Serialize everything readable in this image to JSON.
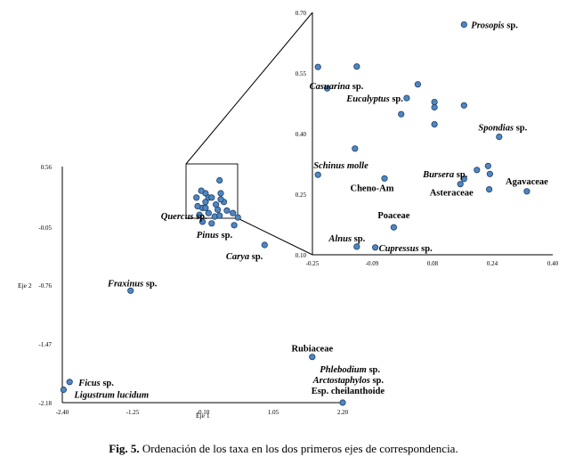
{
  "chart_data": [
    {
      "type": "scatter",
      "name": "main",
      "xlabel": "Eje 1",
      "ylabel": "Eje 2",
      "xlim": [
        -2.4,
        2.2
      ],
      "ylim": [
        -2.18,
        0.56
      ],
      "xticks": [
        "-2.40",
        "-1.25",
        "-0.10",
        "1.05",
        "2.20"
      ],
      "yticks": [
        "0.56",
        "-0.05",
        "-0.76",
        "-1.47",
        "-2.18"
      ],
      "points": [
        {
          "x": -0.05,
          "y": 0.25
        },
        {
          "x": 0.2,
          "y": 0.25
        },
        {
          "x": -0.2,
          "y": 0.2
        },
        {
          "x": -0.05,
          "y": 0.15
        },
        {
          "x": 0.0,
          "y": 0.2
        },
        {
          "x": 0.05,
          "y": 0.2
        },
        {
          "x": 0.25,
          "y": 0.15
        },
        {
          "x": 0.12,
          "y": 0.12
        },
        {
          "x": -0.1,
          "y": 0.08
        },
        {
          "x": 0.15,
          "y": 0.06
        },
        {
          "x": -0.18,
          "y": 0.1
        },
        {
          "x": 0.3,
          "y": 0.05
        },
        {
          "x": 0.0,
          "y": 0.02
        },
        {
          "x": -0.15,
          "y": 0.0
        },
        {
          "x": 0.1,
          "y": -0.02
        },
        {
          "x": -0.05,
          "y": 0.08
        },
        {
          "x": 0.4,
          "y": 0.02
        },
        {
          "x": 0.2,
          "y": 0.18
        },
        {
          "x": -0.1,
          "y": -0.08
        },
        {
          "x": 0.05,
          "y": -0.1
        },
        {
          "x": 0.18,
          "y": 0.4
        },
        {
          "x": 0.48,
          "y": -0.03
        },
        {
          "x": -0.12,
          "y": 0.28
        }
      ],
      "labeled_points": [
        {
          "x": 0.18,
          "y": -0.01,
          "label": "Quercus",
          "suffix": " sp."
        },
        {
          "x": 0.42,
          "y": -0.12,
          "label": "Pinus",
          "suffix": " sp."
        },
        {
          "x": 0.92,
          "y": -0.35,
          "label": "Carya",
          "suffix": " sp."
        },
        {
          "x": -1.28,
          "y": -0.88,
          "label": "Fraxinus",
          "suffix": " sp."
        },
        {
          "x": 1.7,
          "y": -1.65,
          "label": "",
          "suffix": "Rubiaceae"
        },
        {
          "x": -2.28,
          "y": -1.94,
          "label": "Ficus",
          "suffix": " sp."
        },
        {
          "x": -2.38,
          "y": -2.03,
          "label": "Ligustrum lucidum",
          "suffix": ""
        },
        {
          "x": 2.2,
          "y": -2.18,
          "label": "",
          "suffix": ""
        }
      ],
      "annotations": [
        {
          "italic": "Phlebodium",
          "normal": " sp."
        },
        {
          "italic": "Arctostaphylos",
          "normal": " sp."
        },
        {
          "italic": "",
          "normal": "Esp. cheilanthoide"
        }
      ]
    },
    {
      "type": "scatter",
      "name": "inset",
      "xlim": [
        -0.25,
        0.4
      ],
      "ylim": [
        0.1,
        0.7
      ],
      "xticks": [
        "-0.25",
        "-0.09",
        "0.08",
        "0.24",
        "0.40"
      ],
      "yticks": [
        "0.70",
        "0.55",
        "0.40",
        "0.25",
        "0.10"
      ],
      "points": [
        {
          "x": 0.16,
          "y": 0.67,
          "label": "Prosopis",
          "suffix": " sp."
        },
        {
          "x": -0.235,
          "y": 0.565,
          "label": "",
          "suffix": ""
        },
        {
          "x": -0.13,
          "y": 0.566,
          "label": "",
          "suffix": ""
        },
        {
          "x": -0.21,
          "y": 0.512,
          "label": "Casuarina",
          "suffix": " sp."
        },
        {
          "x": 0.035,
          "y": 0.522,
          "label": "",
          "suffix": ""
        },
        {
          "x": 0.005,
          "y": 0.488,
          "label": "Eucalyptus",
          "suffix": " sp."
        },
        {
          "x": 0.08,
          "y": 0.478,
          "label": "",
          "suffix": ""
        },
        {
          "x": 0.08,
          "y": 0.465,
          "label": "",
          "suffix": ""
        },
        {
          "x": 0.16,
          "y": 0.47,
          "label": "",
          "suffix": ""
        },
        {
          "x": -0.01,
          "y": 0.448,
          "label": "",
          "suffix": ""
        },
        {
          "x": 0.08,
          "y": 0.423,
          "label": "",
          "suffix": ""
        },
        {
          "x": 0.255,
          "y": 0.392,
          "label": "Spondias",
          "suffix": " sp."
        },
        {
          "x": -0.135,
          "y": 0.363,
          "label": "",
          "suffix": ""
        },
        {
          "x": -0.235,
          "y": 0.298,
          "label": "Schinus molle",
          "suffix": ""
        },
        {
          "x": -0.055,
          "y": 0.289,
          "label": "",
          "suffix": "Cheno-Am"
        },
        {
          "x": 0.16,
          "y": 0.288,
          "label": "Bursera",
          "suffix": " sp."
        },
        {
          "x": 0.195,
          "y": 0.31,
          "label": "",
          "suffix": ""
        },
        {
          "x": 0.225,
          "y": 0.32,
          "label": "",
          "suffix": ""
        },
        {
          "x": 0.23,
          "y": 0.3,
          "label": "",
          "suffix": ""
        },
        {
          "x": 0.15,
          "y": 0.275,
          "label": "",
          "suffix": "Asteraceae"
        },
        {
          "x": 0.228,
          "y": 0.262,
          "label": "",
          "suffix": ""
        },
        {
          "x": 0.33,
          "y": 0.257,
          "label": "",
          "suffix": "Agavaceae"
        },
        {
          "x": -0.03,
          "y": 0.168,
          "label": "",
          "suffix": "Poaceae"
        },
        {
          "x": -0.13,
          "y": 0.12,
          "label": "Alnus",
          "suffix": " sp."
        },
        {
          "x": -0.08,
          "y": 0.118,
          "label": "Cupressus",
          "suffix": " sp."
        }
      ]
    }
  ],
  "caption": {
    "prefix": "Fig. 5.",
    "text": " Ordenación de los taxa en los dos primeros ejes de correspondencia."
  },
  "colors": {
    "point_fill": "#4f86c1",
    "point_stroke": "#1d3f66"
  }
}
